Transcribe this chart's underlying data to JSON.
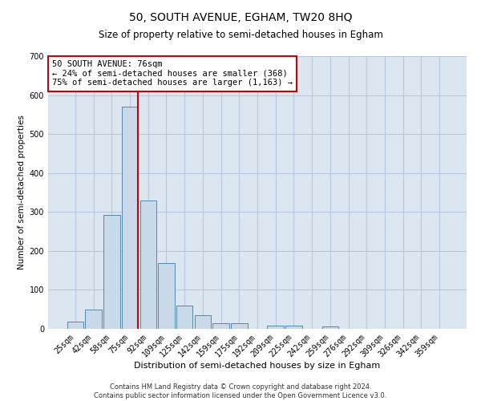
{
  "title": "50, SOUTH AVENUE, EGHAM, TW20 8HQ",
  "subtitle": "Size of property relative to semi-detached houses in Egham",
  "xlabel": "Distribution of semi-detached houses by size in Egham",
  "ylabel": "Number of semi-detached properties",
  "categories": [
    "25sqm",
    "42sqm",
    "58sqm",
    "75sqm",
    "92sqm",
    "109sqm",
    "125sqm",
    "142sqm",
    "159sqm",
    "175sqm",
    "192sqm",
    "209sqm",
    "225sqm",
    "242sqm",
    "259sqm",
    "276sqm",
    "292sqm",
    "309sqm",
    "326sqm",
    "342sqm",
    "359sqm"
  ],
  "values": [
    18,
    50,
    293,
    570,
    330,
    168,
    60,
    35,
    15,
    14,
    0,
    8,
    8,
    0,
    6,
    0,
    0,
    0,
    0,
    0,
    0
  ],
  "bar_color": "#c9d9ea",
  "bar_edge_color": "#5588aa",
  "property_line_color": "#cc0000",
  "annotation_text": "50 SOUTH AVENUE: 76sqm\n← 24% of semi-detached houses are smaller (368)\n75% of semi-detached houses are larger (1,163) →",
  "annotation_box_color": "#ffffff",
  "annotation_box_edge": "#cc0000",
  "ylim": [
    0,
    700
  ],
  "yticks": [
    0,
    100,
    200,
    300,
    400,
    500,
    600,
    700
  ],
  "grid_color": "#b8c8dc",
  "plot_background": "#dce6f0",
  "footer_text": "Contains HM Land Registry data © Crown copyright and database right 2024.\nContains public sector information licensed under the Open Government Licence v3.0.",
  "title_fontsize": 10,
  "subtitle_fontsize": 8.5,
  "xlabel_fontsize": 8,
  "ylabel_fontsize": 7.5,
  "tick_fontsize": 7,
  "annotation_fontsize": 7.5,
  "footer_fontsize": 6
}
